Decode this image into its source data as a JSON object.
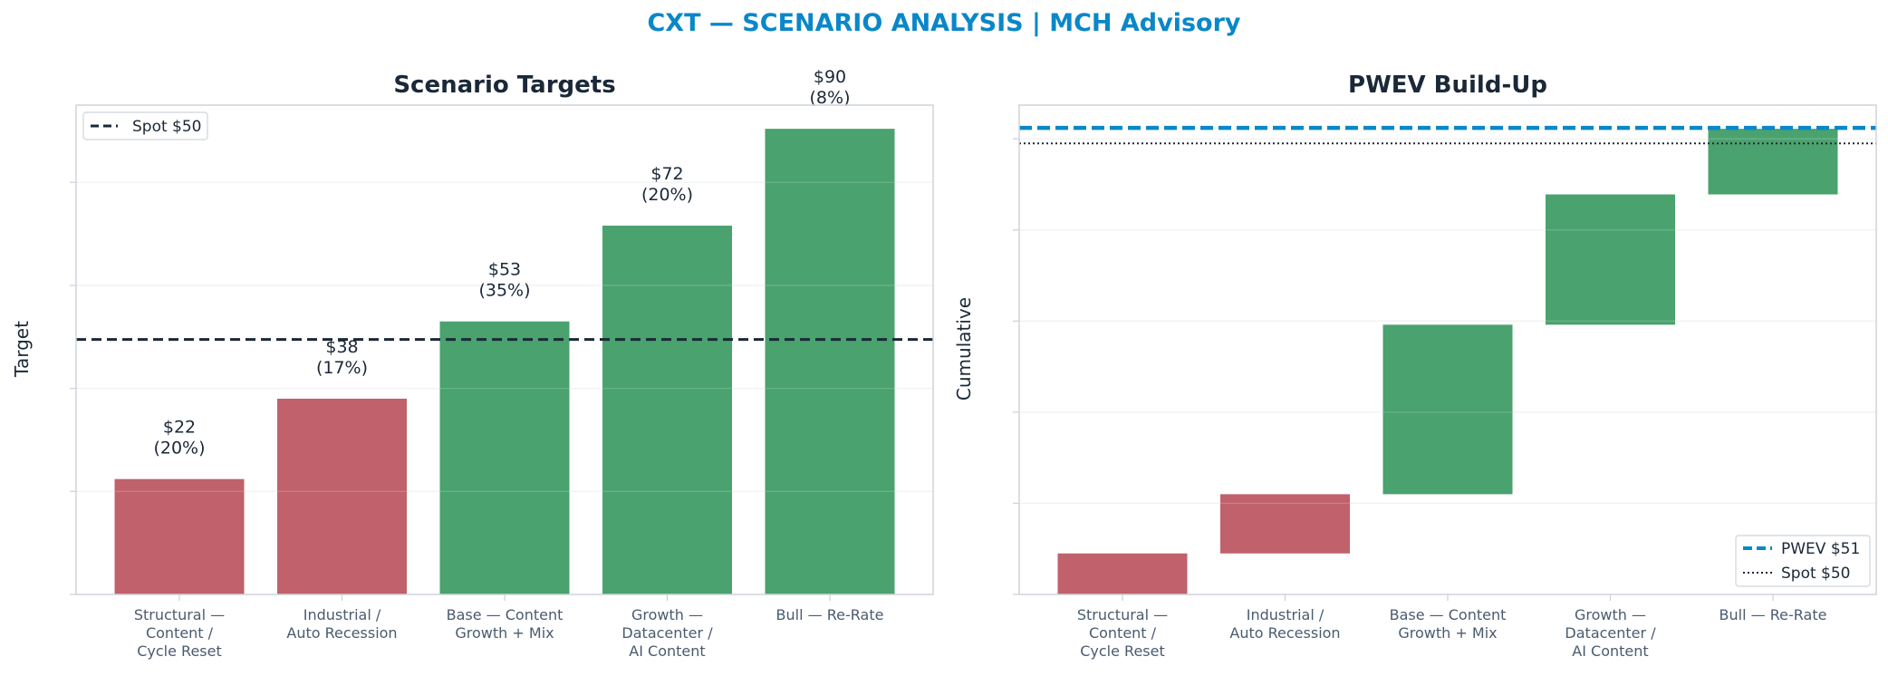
{
  "suptitle": "CXT — SCENARIO ANALYSIS | MCH Advisory",
  "colors": {
    "title": "#0a87c8",
    "bear": "#c0616b",
    "bull": "#4aa26e",
    "spot": "#1b2838",
    "pwev": "#0a87c8",
    "tick": "#4a5b70",
    "frame": "#cfd4da",
    "grid": "#edf0f2"
  },
  "chart_data": [
    {
      "type": "bar",
      "title": "Scenario Targets",
      "xlabel": "",
      "ylabel": "Target",
      "categories": [
        "Structural —\nContent /\nCycle Reset",
        "Industrial /\nAuto Recession",
        "Base — Content\nGrowth + Mix",
        "Growth —\nDatacenter /\nAI Content",
        "Bull — Re-Rate"
      ],
      "values": [
        22.4,
        38,
        53,
        71.6,
        90.4
      ],
      "bar_colors": [
        "bear",
        "bear",
        "bull",
        "bull",
        "bull"
      ],
      "data_labels": [
        "$22\n(20%)",
        "$38\n(17%)",
        "$53\n(35%)",
        "$72\n(20%)",
        "$90\n(8%)"
      ],
      "ylim": [
        0,
        95
      ],
      "yticks": [
        0,
        20,
        40,
        60,
        80
      ],
      "reference_lines": [
        {
          "label": "Spot $50",
          "value": 49.5,
          "style": "dashed",
          "color": "spot"
        }
      ],
      "grid": true,
      "legend": "top-left"
    },
    {
      "type": "bar",
      "subtype": "waterfall",
      "title": "PWEV Build-Up",
      "xlabel": "",
      "ylabel": "Cumulative",
      "categories": [
        "Structural —\nContent /\nCycle Reset",
        "Industrial /\nAuto Recession",
        "Base — Content\nGrowth + Mix",
        "Growth —\nDatacenter /\nAI Content",
        "Bull — Re-Rate"
      ],
      "segments": [
        {
          "start": 0,
          "end": 4.5,
          "color": "bear"
        },
        {
          "start": 4.5,
          "end": 11.0,
          "color": "bear"
        },
        {
          "start": 11.0,
          "end": 29.6,
          "color": "bull"
        },
        {
          "start": 29.6,
          "end": 43.9,
          "color": "bull"
        },
        {
          "start": 43.9,
          "end": 51.1,
          "color": "bull"
        }
      ],
      "ylim": [
        0,
        53.7
      ],
      "yticks": [
        0,
        10,
        20,
        30,
        40,
        50
      ],
      "reference_lines": [
        {
          "label": "PWEV $51",
          "value": 51.2,
          "style": "dashed",
          "color": "pwev"
        },
        {
          "label": "Spot $50",
          "value": 49.5,
          "style": "dotted",
          "color": "spot"
        }
      ],
      "grid": true,
      "legend": "bottom-right"
    }
  ]
}
